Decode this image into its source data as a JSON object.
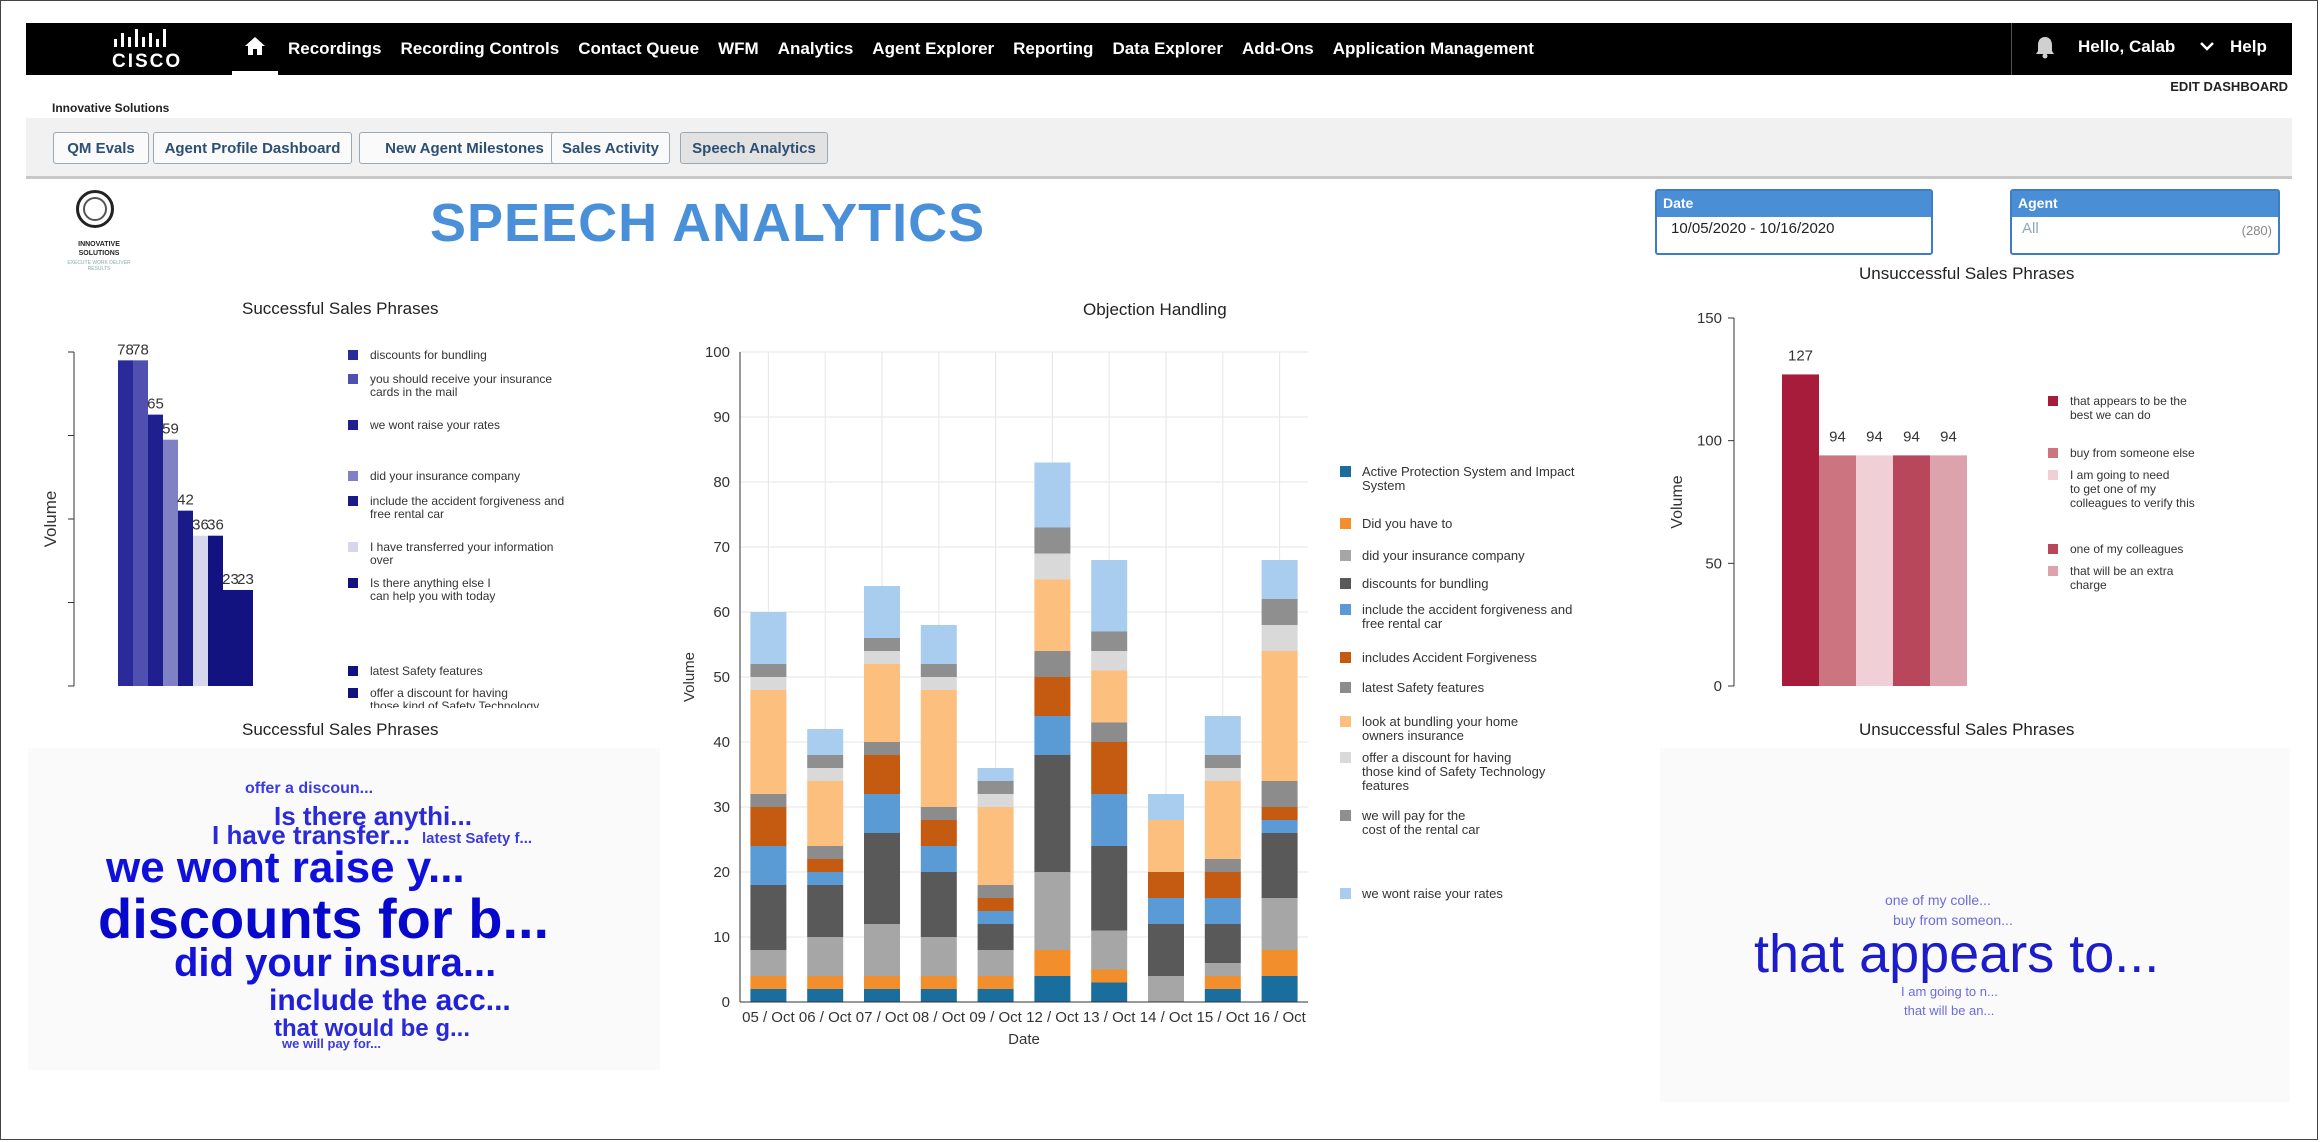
{
  "topnav": {
    "brand": "CISCO",
    "items": [
      "Recordings",
      "Recording Controls",
      "Contact Queue",
      "WFM",
      "Analytics",
      "Agent Explorer",
      "Reporting",
      "Data Explorer",
      "Add-Ons",
      "Application Management"
    ],
    "greeting": "Hello, Calab",
    "help": "Help"
  },
  "company": "Innovative Solutions",
  "edit_dashboard": "EDIT DASHBOARD",
  "tabs": [
    "QM Evals",
    "Agent Profile Dashboard",
    "New Agent Milestones",
    "Sales Activity",
    "Speech Analytics"
  ],
  "brand_logo": {
    "line1": "INNOVATIVE",
    "line2": "SOLUTIONS",
    "tagline": "EXECUTE WORK DELIVER RESULTS"
  },
  "page_title": "SPEECH ANALYTICS",
  "filters": {
    "date": {
      "label": "Date",
      "value": "10/05/2020 - 10/16/2020"
    },
    "agent": {
      "label": "Agent",
      "value": "All",
      "count": "(280)"
    }
  },
  "chart_data": [
    {
      "id": "successful",
      "type": "bar",
      "title": "Successful Sales Phrases",
      "ylabel": "Volume",
      "ylim": [
        0,
        80
      ],
      "categories": [
        "discounts for bundling",
        "you should receive your insurance cards in the mail",
        "we wont raise your rates",
        "did your insurance company",
        "include the accident forgiveness and free rental car",
        "I have transferred your information over",
        "Is there anything else I can help you with today",
        "latest Safety features",
        "offer a discount for having those kind of Safety Technology features"
      ],
      "values": [
        78,
        78,
        65,
        59,
        42,
        36,
        36,
        23,
        23
      ],
      "value_labels": [
        "78",
        "78",
        "65",
        "59",
        "42",
        "36",
        "36",
        "23",
        "23"
      ],
      "legend_labels": [
        "discounts for bundling",
        "you should receive your insurance\ncards in the mail",
        "we wont raise your rates",
        "did your insurance company",
        "include the accident forgiveness and\nfree rental car",
        "I have transferred your information\nover",
        "Is there anything else I\ncan help you with today",
        "latest Safety features",
        "offer a discount for having\nthose kind of Safety Technology\nfea..."
      ],
      "colors": [
        "#2a2a9a",
        "#5050b0",
        "#1f1f8f",
        "#8080c4",
        "#1a1a88",
        "#d6d6ec",
        "#121280",
        "#121280",
        "#121280"
      ]
    },
    {
      "id": "objection",
      "type": "bar",
      "stacked": true,
      "title": "Objection Handling",
      "xlabel": "Date",
      "ylabel": "Volume",
      "ylim": [
        0,
        100
      ],
      "yticks": [
        0,
        10,
        20,
        30,
        40,
        50,
        60,
        70,
        80,
        90,
        100
      ],
      "categories": [
        "05 / Oct",
        "06 / Oct",
        "07 / Oct",
        "08 / Oct",
        "09 / Oct",
        "12 / Oct",
        "13 / Oct",
        "14 / Oct",
        "15 / Oct",
        "16 / Oct"
      ],
      "series": [
        {
          "name": "Active Protection System and Impact System",
          "color": "#1a6e9e",
          "values": [
            2,
            2,
            2,
            2,
            2,
            4,
            3,
            0,
            2,
            4
          ]
        },
        {
          "name": "Did you have to",
          "color": "#f28e2b",
          "values": [
            2,
            2,
            2,
            2,
            2,
            4,
            2,
            0,
            2,
            4
          ]
        },
        {
          "name": "did your insurance company",
          "color": "#a6a6a6",
          "values": [
            4,
            6,
            8,
            6,
            4,
            12,
            6,
            4,
            2,
            8
          ]
        },
        {
          "name": "discounts for bundling",
          "color": "#595959",
          "values": [
            10,
            8,
            14,
            10,
            4,
            18,
            13,
            8,
            6,
            10
          ]
        },
        {
          "name": "include the accident forgiveness and free rental car",
          "color": "#5b9bd5",
          "values": [
            6,
            2,
            6,
            4,
            2,
            6,
            8,
            4,
            4,
            2
          ]
        },
        {
          "name": "includes Accident Forgiveness",
          "color": "#c55a11",
          "values": [
            6,
            2,
            6,
            4,
            2,
            6,
            8,
            4,
            4,
            2
          ]
        },
        {
          "name": "latest Safety features",
          "color": "#8c8c8c",
          "values": [
            2,
            2,
            2,
            2,
            2,
            4,
            3,
            0,
            2,
            4
          ]
        },
        {
          "name": "look at bundling your home owners insurance",
          "color": "#fdbf7e",
          "values": [
            16,
            10,
            12,
            18,
            12,
            11,
            8,
            8,
            12,
            20
          ]
        },
        {
          "name": "offer a discount for having those kind of Safety Technology features",
          "color": "#d9d9d9",
          "values": [
            2,
            2,
            2,
            2,
            2,
            4,
            3,
            0,
            2,
            4
          ]
        },
        {
          "name": "we will pay for the cost of the rental car",
          "color": "#8f8f8f",
          "values": [
            2,
            2,
            2,
            2,
            2,
            4,
            3,
            0,
            2,
            4
          ]
        },
        {
          "name": "we wont raise your rates",
          "color": "#a9cdee",
          "values": [
            8,
            4,
            8,
            6,
            2,
            10,
            11,
            4,
            6,
            6
          ]
        }
      ],
      "legend_labels": [
        "Active Protection System and Impact\nSystem",
        "Did you have to",
        "did your insurance company",
        "discounts for bundling",
        "include the accident forgiveness and\nfree rental car",
        "includes Accident Forgiveness",
        "latest Safety features",
        "look at bundling your home\nowners insurance",
        "offer a discount for having\nthose kind of Safety Technology\nfeatures",
        "we will pay for the\ncost of the rental car",
        "we wont raise your rates"
      ]
    },
    {
      "id": "unsuccessful",
      "type": "bar",
      "title": "Unsuccessful Sales Phrases",
      "ylabel": "Volume",
      "ylim": [
        0,
        150
      ],
      "yticks": [
        0,
        50,
        100,
        150
      ],
      "categories": [
        "that appears to be the best we can do",
        "buy from someone else",
        "I am going to need to get one of my colleagues to verify this",
        "one of my colleagues",
        "that will be an extra charge"
      ],
      "values": [
        127,
        94,
        94,
        94,
        94
      ],
      "value_labels": [
        "127",
        "94",
        "94",
        "94",
        "94"
      ],
      "legend_labels": [
        "that appears to be the\nbest we can do",
        "buy from someone else",
        "I am going to need\nto get one of my\ncolleagues to verify this",
        "one of my colleagues",
        "that will be an extra\ncharge"
      ],
      "colors": [
        "#a61c3a",
        "#cc7480",
        "#f0d0d6",
        "#b8475c",
        "#dca3ad"
      ]
    }
  ],
  "wordclouds": {
    "successful": {
      "title": "Successful Sales Phrases",
      "words": [
        "offer a discoun...",
        "Is there anythi...",
        "I have transfer...",
        "latest Safety f...",
        "we wont raise y...",
        "discounts for b...",
        "did your insura...",
        "include the acc...",
        "that would be g...",
        "we will pay for..."
      ]
    },
    "unsuccessful": {
      "title": "Unsuccessful Sales Phrases",
      "words": [
        "one of my colle...",
        "buy from someon...",
        "that appears to...",
        "I am going to n...",
        "that will be an..."
      ]
    }
  }
}
